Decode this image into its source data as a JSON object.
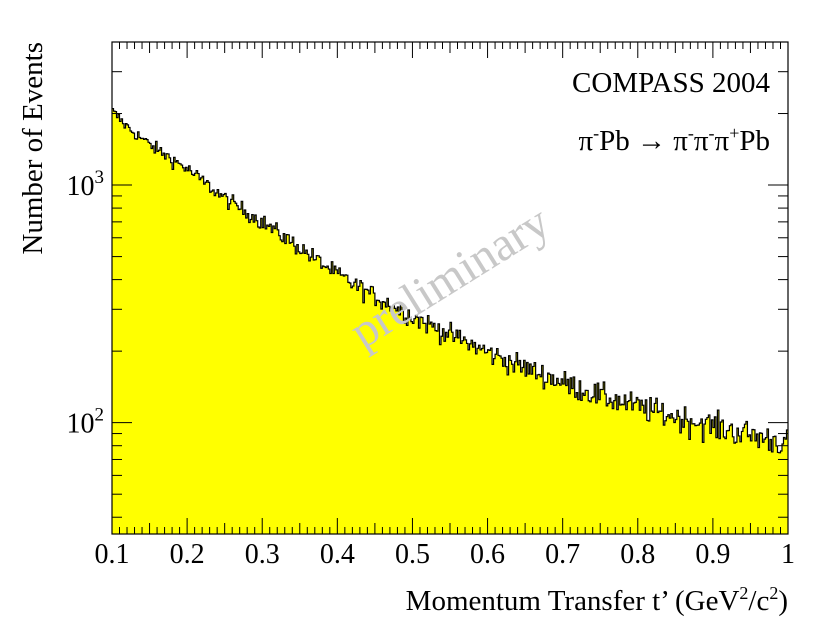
{
  "chart_data": {
    "type": "histogram",
    "title": "",
    "annotations": {
      "experiment": "COMPASS 2004",
      "reaction": {
        "beam": "π",
        "beam_sup": "-",
        "target": "Pb",
        "arrow": "→",
        "p1": "π",
        "p1_sup": "-",
        "p2": "π",
        "p2_sup": "-",
        "p3": "π",
        "p3_sup": "+",
        "recoil": "Pb"
      },
      "watermark": "preliminary"
    },
    "xlabel": {
      "main": "Momentum Transfer t’ (GeV",
      "sup1": "2",
      "mid": "/c",
      "sup2": "2",
      "end": ")"
    },
    "ylabel": "Number of Events",
    "xlim": [
      0.1,
      1.0
    ],
    "ylim": [
      34,
      4000
    ],
    "yscale": "log",
    "x_ticks": [
      {
        "value": 0.1,
        "label": "0.1"
      },
      {
        "value": 0.2,
        "label": "0.2"
      },
      {
        "value": 0.3,
        "label": "0.3"
      },
      {
        "value": 0.4,
        "label": "0.4"
      },
      {
        "value": 0.5,
        "label": "0.5"
      },
      {
        "value": 0.6,
        "label": "0.6"
      },
      {
        "value": 0.7,
        "label": "0.7"
      },
      {
        "value": 0.8,
        "label": "0.8"
      },
      {
        "value": 0.9,
        "label": "0.9"
      },
      {
        "value": 1.0,
        "label": "1"
      }
    ],
    "y_ticks": [
      {
        "value": 100,
        "base": "10",
        "exp": "2"
      },
      {
        "value": 1000,
        "base": "10",
        "exp": "3"
      }
    ],
    "grid": false,
    "fill_color": "#ffff00",
    "line_color": "#000000",
    "bin_width": 0.002,
    "shape_points": [
      {
        "x": 0.1,
        "y": 2050
      },
      {
        "x": 0.12,
        "y": 1760
      },
      {
        "x": 0.15,
        "y": 1480
      },
      {
        "x": 0.2,
        "y": 1170
      },
      {
        "x": 0.25,
        "y": 880
      },
      {
        "x": 0.3,
        "y": 700
      },
      {
        "x": 0.35,
        "y": 545
      },
      {
        "x": 0.4,
        "y": 420
      },
      {
        "x": 0.45,
        "y": 340
      },
      {
        "x": 0.5,
        "y": 280
      },
      {
        "x": 0.55,
        "y": 235
      },
      {
        "x": 0.6,
        "y": 198
      },
      {
        "x": 0.65,
        "y": 170
      },
      {
        "x": 0.7,
        "y": 148
      },
      {
        "x": 0.75,
        "y": 130
      },
      {
        "x": 0.8,
        "y": 117
      },
      {
        "x": 0.85,
        "y": 106
      },
      {
        "x": 0.9,
        "y": 97
      },
      {
        "x": 0.95,
        "y": 89
      },
      {
        "x": 1.0,
        "y": 82
      }
    ],
    "fluctuation": 0.055
  }
}
